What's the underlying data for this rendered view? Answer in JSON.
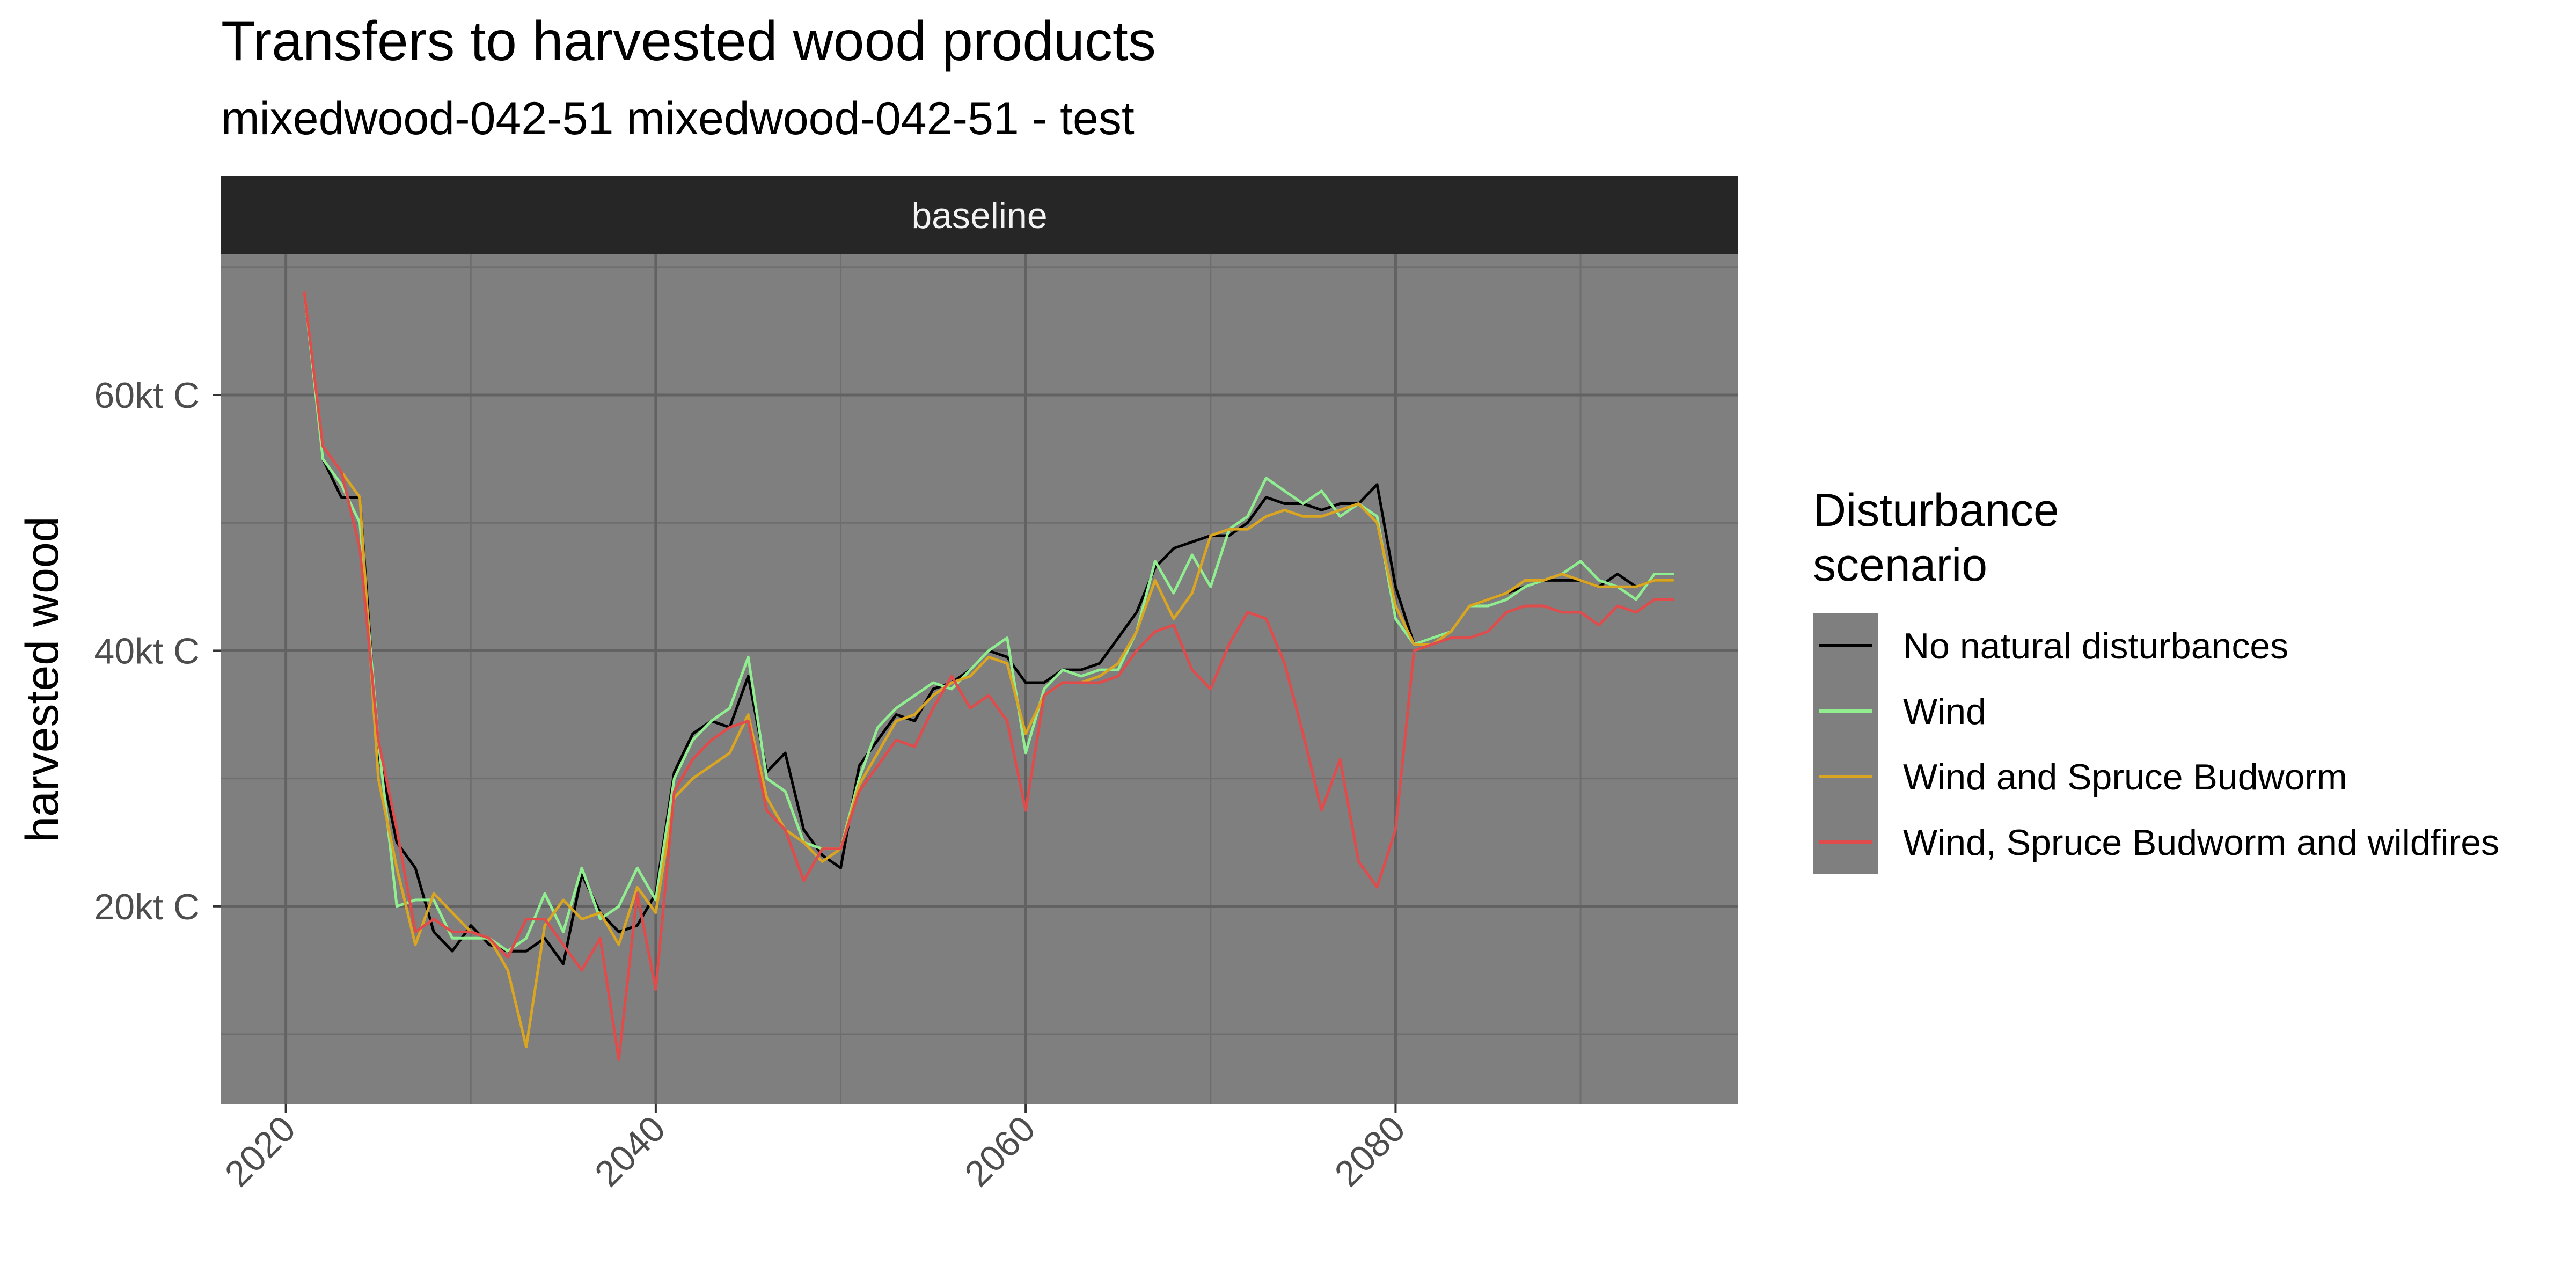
{
  "chart_data": {
    "type": "line",
    "title": "Transfers to harvested wood products",
    "subtitle": "mixedwood-042-51 mixedwood-042-51 - test",
    "facet_label": "baseline",
    "ylabel": "harvested wood",
    "xlabel": "",
    "xlim": [
      2016.5,
      2098.5
    ],
    "ylim": [
      4.5,
      71
    ],
    "x_ticks": [
      2020,
      2040,
      2060,
      2080
    ],
    "y_ticks": [
      20,
      40,
      60
    ],
    "y_tick_labels": [
      "20kt C",
      "40kt C",
      "60kt C"
    ],
    "y_minor_ticks": [
      10,
      30,
      50,
      70
    ],
    "grid": true,
    "panel_background": "#7f7f7f",
    "legend": {
      "title_line1": "Disturbance",
      "title_line2": "scenario",
      "position": "right"
    },
    "x": [
      2021,
      2022,
      2023,
      2024,
      2025,
      2026,
      2027,
      2028,
      2029,
      2030,
      2031,
      2032,
      2033,
      2034,
      2035,
      2036,
      2037,
      2038,
      2039,
      2040,
      2041,
      2042,
      2043,
      2044,
      2045,
      2046,
      2047,
      2048,
      2049,
      2050,
      2051,
      2052,
      2053,
      2054,
      2055,
      2056,
      2057,
      2058,
      2059,
      2060,
      2061,
      2062,
      2063,
      2064,
      2065,
      2066,
      2067,
      2068,
      2069,
      2070,
      2071,
      2072,
      2073,
      2074,
      2075,
      2076,
      2077,
      2078,
      2079,
      2080,
      2081,
      2082,
      2083,
      2084,
      2085,
      2086,
      2087,
      2088,
      2089,
      2090,
      2091,
      2092,
      2093,
      2094,
      2095
    ],
    "series": [
      {
        "name": "No natural disturbances",
        "color": "#000000",
        "values": [
          68,
          55,
          52,
          52,
          32,
          25,
          23,
          18,
          16.5,
          18.5,
          17,
          16.5,
          16.5,
          17.5,
          15.5,
          22.5,
          19.5,
          18,
          18.5,
          21,
          30.5,
          33.5,
          34.5,
          34,
          38,
          30.5,
          32,
          26,
          24,
          23,
          31,
          33,
          35,
          34.5,
          37,
          37.5,
          38.5,
          40,
          39.5,
          37.5,
          37.5,
          38.5,
          38.5,
          39,
          41,
          43,
          46.5,
          48,
          48.5,
          49,
          49,
          50,
          52,
          51.5,
          51.5,
          51,
          51.5,
          51.5,
          53,
          45,
          40.5,
          41,
          41.5,
          43.5,
          44,
          44.5,
          45,
          45.5,
          45.5,
          45.5,
          45,
          46,
          45,
          45.5,
          45.5
        ]
      },
      {
        "name": "Wind",
        "color": "#90ee90",
        "values": [
          68,
          55,
          53,
          50,
          33,
          20,
          20.5,
          20.5,
          17.5,
          17.5,
          17.5,
          16.5,
          17.5,
          21,
          18,
          23,
          19,
          20,
          23,
          20.5,
          30,
          33,
          34.5,
          35.5,
          39.5,
          30,
          29,
          25,
          24.5,
          24.5,
          30,
          34,
          35.5,
          36.5,
          37.5,
          37,
          38.5,
          40,
          41,
          32,
          37,
          38.5,
          38,
          38.5,
          38.5,
          41.5,
          47,
          44.5,
          47.5,
          45,
          49.5,
          50.5,
          53.5,
          52.5,
          51.5,
          52.5,
          50.5,
          51.5,
          50.5,
          42.5,
          40.5,
          41,
          41.5,
          43.5,
          43.5,
          44,
          45,
          45.5,
          46,
          47,
          45.5,
          45,
          44,
          46,
          46
        ]
      },
      {
        "name": "Wind and Spruce Budworm",
        "color": "#daa520",
        "values": [
          68,
          56,
          54,
          52,
          30,
          23,
          17,
          21,
          19.5,
          18,
          17.5,
          15,
          9,
          18.5,
          20.5,
          19,
          19.5,
          17,
          21.5,
          19.5,
          28.5,
          30,
          31,
          32,
          35,
          28.5,
          26,
          25,
          23.5,
          24.5,
          29.5,
          32,
          34.5,
          35,
          36.5,
          37.5,
          38,
          39.5,
          39,
          33.5,
          36.5,
          37.5,
          37.5,
          38,
          39,
          41.5,
          45.5,
          42.5,
          44.5,
          49,
          49.5,
          49.5,
          50.5,
          51,
          50.5,
          50.5,
          51,
          51.5,
          50,
          43.5,
          40.5,
          40.5,
          41.5,
          43.5,
          44,
          44.5,
          45.5,
          45.5,
          46,
          45.5,
          45,
          45,
          45,
          45.5,
          45.5
        ]
      },
      {
        "name": "Wind, Spruce Budworm and wildfires",
        "color": "#e04b4b",
        "values": [
          68,
          56,
          54,
          48,
          33,
          26,
          18,
          19,
          18,
          18,
          17.5,
          16,
          19,
          19,
          17,
          15,
          17.5,
          8,
          21,
          13.5,
          29,
          31.5,
          33,
          34,
          34.5,
          27.5,
          26,
          22,
          24.5,
          24.5,
          29,
          31,
          33,
          32.5,
          35.5,
          38,
          35.5,
          36.5,
          34.5,
          27.5,
          36.5,
          37.5,
          37.5,
          37.5,
          38,
          40,
          41.5,
          42,
          38.5,
          37,
          40.5,
          43,
          42.5,
          39,
          33.5,
          27.5,
          31.5,
          23.5,
          21.5,
          26,
          40,
          40.5,
          41,
          41,
          41.5,
          43,
          43.5,
          43.5,
          43,
          43,
          42,
          43.5,
          43,
          44,
          44
        ]
      }
    ]
  }
}
